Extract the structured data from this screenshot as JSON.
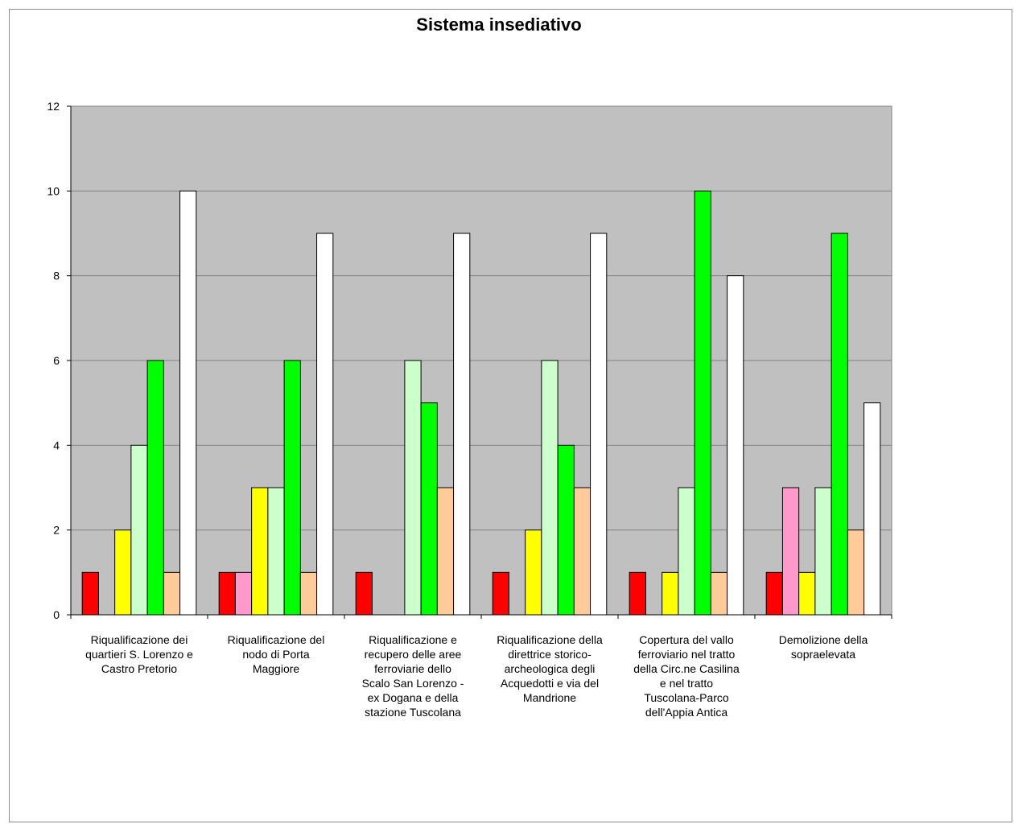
{
  "chart_data": {
    "type": "bar",
    "title": "Sistema insediativo",
    "xlabel": "",
    "ylabel": "",
    "ylim": [
      0,
      12
    ],
    "yticks": [
      0,
      2,
      4,
      6,
      8,
      10,
      12
    ],
    "grid": true,
    "legend": "none",
    "plot_background": "#c0c0c0",
    "categories": [
      [
        "Riqualificazione dei",
        "quartieri S. Lorenzo e",
        "Castro Pretorio"
      ],
      [
        "Riqualificazione del",
        "nodo di Porta",
        "Maggiore"
      ],
      [
        "Riqualificazione e",
        "recupero delle aree",
        "ferroviarie dello",
        "Scalo San Lorenzo -",
        "ex Dogana e della",
        "stazione Tuscolana"
      ],
      [
        "Riqualificazione della",
        "direttrice storico-",
        "archeologica degli",
        "Acquedotti e via del",
        "Mandrione"
      ],
      [
        "Copertura del vallo",
        "ferroviario nel tratto",
        "della Circ.ne Casilina",
        "e nel tratto",
        "Tuscolana-Parco",
        "dell'Appia Antica"
      ],
      [
        "Demolizione della",
        "sopraelevata"
      ]
    ],
    "series": [
      {
        "color": "#ff0000",
        "values": [
          1,
          1,
          1,
          1,
          1,
          1
        ]
      },
      {
        "color": "#ff99cc",
        "values": [
          0,
          1,
          0,
          0,
          0,
          3
        ]
      },
      {
        "color": "#ffff00",
        "values": [
          2,
          3,
          0,
          2,
          1,
          1
        ]
      },
      {
        "color": "#ccffcc",
        "values": [
          4,
          3,
          6,
          6,
          3,
          3
        ]
      },
      {
        "color": "#00ff00",
        "values": [
          6,
          6,
          5,
          4,
          10,
          9
        ]
      },
      {
        "color": "#ffcc99",
        "values": [
          1,
          1,
          3,
          3,
          1,
          2
        ]
      },
      {
        "color": "#ffffff",
        "values": [
          10,
          9,
          9,
          9,
          8,
          5
        ]
      }
    ]
  }
}
